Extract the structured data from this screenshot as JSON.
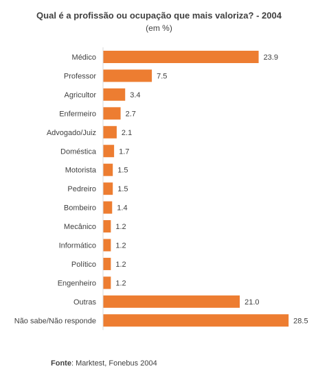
{
  "chart_data": {
    "type": "bar",
    "orientation": "horizontal",
    "title": "Qual é a profissão ou ocupação que mais valoriza?  - 2004",
    "subtitle": "(em %)",
    "categories": [
      "Médico",
      "Professor",
      "Agricultor",
      "Enfermeiro",
      "Advogado/Juiz",
      "Doméstica",
      "Motorista",
      "Pedreiro",
      "Bombeiro",
      "Mecânico",
      "Informático",
      "Político",
      "Engenheiro",
      "Outras",
      "Não sabe/Não responde"
    ],
    "values": [
      23.9,
      7.5,
      3.4,
      2.7,
      2.1,
      1.7,
      1.5,
      1.5,
      1.4,
      1.2,
      1.2,
      1.2,
      1.2,
      21.0,
      28.5
    ],
    "value_labels": [
      "23.9",
      "7.5",
      "3.4",
      "2.7",
      "2.1",
      "1.7",
      "1.5",
      "1.5",
      "1.4",
      "1.2",
      "1.2",
      "1.2",
      "1.2",
      "21.0",
      "28.5"
    ],
    "bar_color": "#ED7D31",
    "grid": false,
    "legend": "none"
  },
  "source": {
    "label": "Fonte",
    "text": ": Marktest, Fonebus 2004"
  }
}
